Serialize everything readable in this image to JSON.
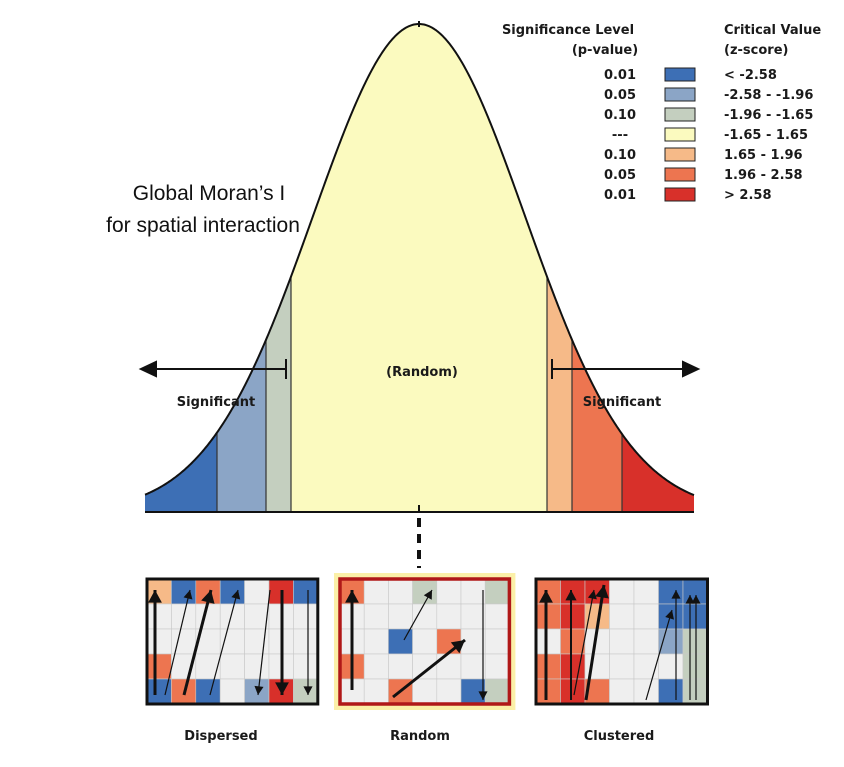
{
  "legend": {
    "header_sig_line1": "Significance Level",
    "header_sig_line2": "(p-value)",
    "header_crit_line1": "Critical Value",
    "header_crit_line2": "(z-score)",
    "rows": [
      {
        "p": "0.01",
        "z": "< -2.58",
        "color": "#3d6fb5"
      },
      {
        "p": "0.05",
        "z": "-2.58 - -1.96",
        "color": "#8ba5c6"
      },
      {
        "p": "0.10",
        "z": "-1.96 - -1.65",
        "color": "#c4cfbf"
      },
      {
        "p": "---",
        "z": "-1.65 - 1.65",
        "color": "#fbfabf"
      },
      {
        "p": "0.10",
        "z": "1.65 - 1.96",
        "color": "#f6ba88"
      },
      {
        "p": "0.05",
        "z": "1.96 - 2.58",
        "color": "#ed7550"
      },
      {
        "p": "0.01",
        "z": "> 2.58",
        "color": "#d8302a"
      }
    ]
  },
  "title": {
    "line1": "Global Moran’s I",
    "line2": "for spatial interaction"
  },
  "curve": {
    "center_label": "(Random)",
    "left_label": "Significant",
    "right_label": "Significant"
  },
  "panels": [
    {
      "label": "Dispersed"
    },
    {
      "label": "Random"
    },
    {
      "label": "Clustered"
    }
  ],
  "colors": {
    "blue": "#3d6fb5",
    "lightblue": "#8ba5c6",
    "grey": "#c4cfbf",
    "yellow": "#fbfabf",
    "peach": "#f6ba88",
    "orange": "#ed7550",
    "red": "#d8302a",
    "empty": "#efefef",
    "random_border": "#b01818",
    "random_glow": "#fbf0a8"
  }
}
